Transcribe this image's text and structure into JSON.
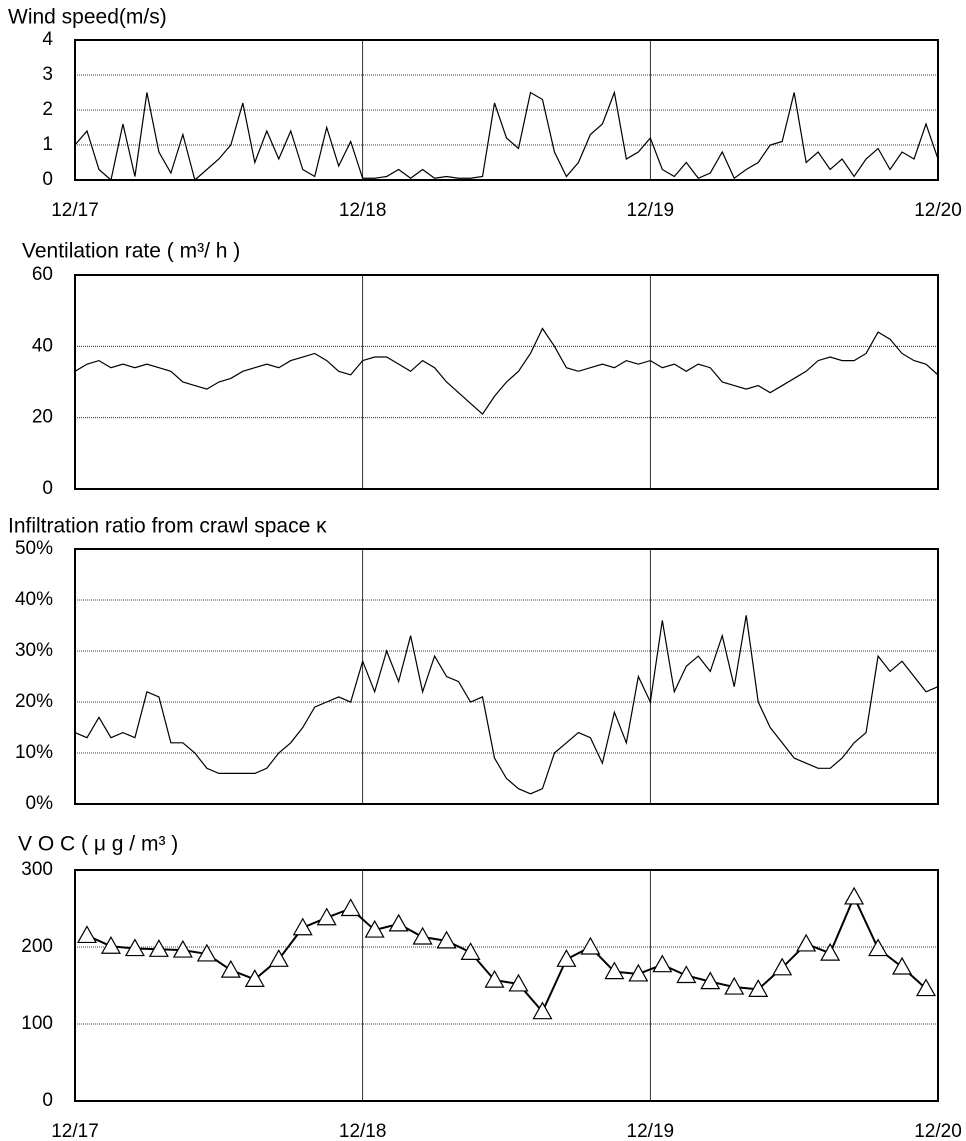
{
  "chart_data": [
    {
      "type": "line",
      "title": "Wind speed(m/s)",
      "x": [
        0,
        1,
        2,
        3,
        4,
        5,
        6,
        7,
        8,
        9,
        10,
        11,
        12,
        13,
        14,
        15,
        16,
        17,
        18,
        19,
        20,
        21,
        22,
        23,
        24,
        25,
        26,
        27,
        28,
        29,
        30,
        31,
        32,
        33,
        34,
        35,
        36,
        37,
        38,
        39,
        40,
        41,
        42,
        43,
        44,
        45,
        46,
        47,
        48,
        49,
        50,
        51,
        52,
        53,
        54,
        55,
        56,
        57,
        58,
        59,
        60,
        61,
        62,
        63,
        64,
        65,
        66,
        67,
        68,
        69,
        70,
        71,
        72
      ],
      "series": [
        {
          "color": "#000000",
          "values": [
            1.0,
            1.4,
            0.3,
            0,
            1.6,
            0.1,
            2.5,
            0.8,
            0.2,
            1.3,
            0,
            0.3,
            0.6,
            1.0,
            2.2,
            0.5,
            1.4,
            0.6,
            1.4,
            0.3,
            0.1,
            1.5,
            0.4,
            1.1,
            0.05,
            0.05,
            0.1,
            0.3,
            0.05,
            0.3,
            0.05,
            0.1,
            0.05,
            0.05,
            0.1,
            2.2,
            1.2,
            0.9,
            2.5,
            2.3,
            0.8,
            0.1,
            0.5,
            1.3,
            1.6,
            2.5,
            0.6,
            0.8,
            1.2,
            0.3,
            0.1,
            0.5,
            0.05,
            0.2,
            0.8,
            0.05,
            0.3,
            0.5,
            1.0,
            1.1,
            2.5,
            0.5,
            0.8,
            0.3,
            0.6,
            0.1,
            0.6,
            0.9,
            0.3,
            0.8,
            0.6,
            1.6,
            0.6
          ]
        }
      ],
      "xlim": [
        0,
        72
      ],
      "xticks": [
        {
          "value": 0,
          "label": "12/17"
        },
        {
          "value": 24,
          "label": "12/18"
        },
        {
          "value": 48,
          "label": "12/19"
        },
        {
          "value": 72,
          "label": "12/20"
        }
      ],
      "xtick_labels": true,
      "ylim": [
        0,
        4
      ],
      "yticks": [
        0,
        1,
        2,
        3,
        4
      ],
      "grid": true
    },
    {
      "type": "line",
      "title": "Ventilation rate ( m³/ h )",
      "x": [
        0,
        1,
        2,
        3,
        4,
        5,
        6,
        7,
        8,
        9,
        10,
        11,
        12,
        13,
        14,
        15,
        16,
        17,
        18,
        19,
        20,
        21,
        22,
        23,
        24,
        25,
        26,
        27,
        28,
        29,
        30,
        31,
        32,
        33,
        34,
        35,
        36,
        37,
        38,
        39,
        40,
        41,
        42,
        43,
        44,
        45,
        46,
        47,
        48,
        49,
        50,
        51,
        52,
        53,
        54,
        55,
        56,
        57,
        58,
        59,
        60,
        61,
        62,
        63,
        64,
        65,
        66,
        67,
        68,
        69,
        70,
        71,
        72
      ],
      "series": [
        {
          "color": "#000000",
          "values": [
            33,
            35,
            36,
            34,
            35,
            34,
            35,
            34,
            33,
            30,
            29,
            28,
            30,
            31,
            33,
            34,
            35,
            34,
            36,
            37,
            38,
            36,
            33,
            32,
            36,
            37,
            37,
            35,
            33,
            36,
            34,
            30,
            27,
            24,
            21,
            26,
            30,
            33,
            38,
            45,
            40,
            34,
            33,
            34,
            35,
            34,
            36,
            35,
            36,
            34,
            35,
            33,
            35,
            34,
            30,
            29,
            28,
            29,
            27,
            29,
            31,
            33,
            36,
            37,
            36,
            36,
            38,
            44,
            42,
            38,
            36,
            35,
            32
          ]
        }
      ],
      "xlim": [
        0,
        72
      ],
      "xticks": [
        0,
        24,
        48,
        72
      ],
      "xtick_labels": false,
      "ylim": [
        0,
        60
      ],
      "yticks": [
        0,
        20,
        40,
        60
      ],
      "grid": true
    },
    {
      "type": "line",
      "title": "Infiltration ratio from crawl space κ",
      "x": [
        0,
        1,
        2,
        3,
        4,
        5,
        6,
        7,
        8,
        9,
        10,
        11,
        12,
        13,
        14,
        15,
        16,
        17,
        18,
        19,
        20,
        21,
        22,
        23,
        24,
        25,
        26,
        27,
        28,
        29,
        30,
        31,
        32,
        33,
        34,
        35,
        36,
        37,
        38,
        39,
        40,
        41,
        42,
        43,
        44,
        45,
        46,
        47,
        48,
        49,
        50,
        51,
        52,
        53,
        54,
        55,
        56,
        57,
        58,
        59,
        60,
        61,
        62,
        63,
        64,
        65,
        66,
        67,
        68,
        69,
        70,
        71,
        72
      ],
      "series": [
        {
          "color": "#000000",
          "values": [
            14,
            13,
            17,
            13,
            14,
            13,
            22,
            21,
            12,
            12,
            10,
            7,
            6,
            6,
            6,
            6,
            7,
            10,
            12,
            15,
            19,
            20,
            21,
            20,
            28,
            22,
            30,
            24,
            33,
            22,
            29,
            25,
            24,
            20,
            21,
            9,
            5,
            3,
            2,
            3,
            10,
            12,
            14,
            13,
            8,
            18,
            12,
            25,
            20,
            36,
            22,
            27,
            29,
            26,
            33,
            23,
            37,
            20,
            15,
            12,
            9,
            8,
            7,
            7,
            9,
            12,
            14,
            29,
            26,
            28,
            25,
            22,
            23
          ]
        }
      ],
      "xlim": [
        0,
        72
      ],
      "xticks": [
        0,
        24,
        48,
        72
      ],
      "xtick_labels": false,
      "ylim": [
        0,
        50
      ],
      "yticks": [
        {
          "value": 0,
          "label": "0%"
        },
        {
          "value": 10,
          "label": "10%"
        },
        {
          "value": 20,
          "label": "20%"
        },
        {
          "value": 30,
          "label": "30%"
        },
        {
          "value": 40,
          "label": "40%"
        },
        {
          "value": 50,
          "label": "50%"
        }
      ],
      "grid": true
    },
    {
      "type": "line",
      "title": "V O C ( μ g / m³ )",
      "marker": "triangle",
      "x": [
        1,
        3,
        5,
        7,
        9,
        11,
        13,
        15,
        17,
        19,
        21,
        23,
        25,
        27,
        29,
        31,
        33,
        35,
        37,
        39,
        41,
        43,
        45,
        47,
        49,
        51,
        53,
        55,
        57,
        59,
        61,
        63,
        65,
        67,
        69,
        71
      ],
      "series": [
        {
          "color": "#000000",
          "values": [
            215,
            201,
            198,
            197,
            196,
            191,
            170,
            158,
            184,
            225,
            238,
            250,
            222,
            230,
            213,
            208,
            193,
            157,
            152,
            116,
            184,
            200,
            168,
            165,
            177,
            163,
            155,
            148,
            145,
            173,
            204,
            192,
            265,
            198,
            174,
            146
          ]
        }
      ],
      "xlim": [
        0,
        72
      ],
      "xticks": [
        {
          "value": 0,
          "label": "12/17"
        },
        {
          "value": 24,
          "label": "12/18"
        },
        {
          "value": 48,
          "label": "12/19"
        },
        {
          "value": 72,
          "label": "12/20"
        }
      ],
      "xtick_labels": true,
      "ylim": [
        0,
        300
      ],
      "yticks": [
        0,
        100,
        200,
        300
      ],
      "grid": true
    }
  ]
}
